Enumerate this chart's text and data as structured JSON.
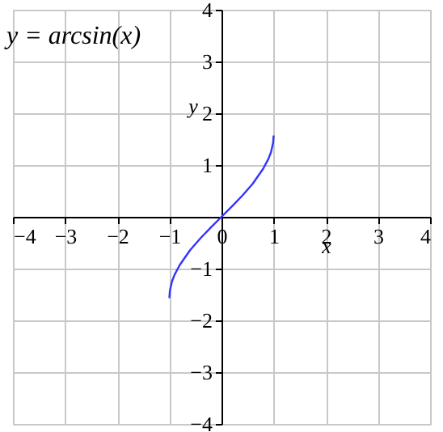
{
  "chart_data": {
    "type": "line",
    "title": "y = arcsin(x)",
    "xlabel": "x",
    "ylabel": "y",
    "x": [
      -1,
      -0.99,
      -0.95,
      -0.9,
      -0.8,
      -0.6,
      -0.4,
      -0.2,
      0,
      0.2,
      0.4,
      0.6,
      0.8,
      0.9,
      0.95,
      0.99,
      1
    ],
    "series": [
      {
        "color": "#3333ff",
        "values": [
          -1.57,
          -1.43,
          -1.25,
          -1.12,
          -0.93,
          -0.64,
          -0.41,
          -0.2,
          0,
          0.2,
          0.41,
          0.64,
          0.93,
          1.12,
          1.25,
          1.43,
          1.57
        ]
      }
    ],
    "xlim": [
      -4,
      4
    ],
    "ylim": [
      -4,
      4
    ],
    "xticks": [
      {
        "value": -4,
        "label": "−4"
      },
      {
        "value": -3,
        "label": "−3"
      },
      {
        "value": -2,
        "label": "−2"
      },
      {
        "value": -1,
        "label": "−1"
      },
      0,
      1,
      2,
      3,
      4
    ],
    "yticks": [
      {
        "value": -4,
        "label": "−4"
      },
      {
        "value": -3,
        "label": "−3"
      },
      {
        "value": -2,
        "label": "−2"
      },
      {
        "value": -1,
        "label": "−1"
      },
      1,
      2,
      3,
      4
    ],
    "grid": true,
    "marker": "none",
    "line_style": "solid"
  }
}
